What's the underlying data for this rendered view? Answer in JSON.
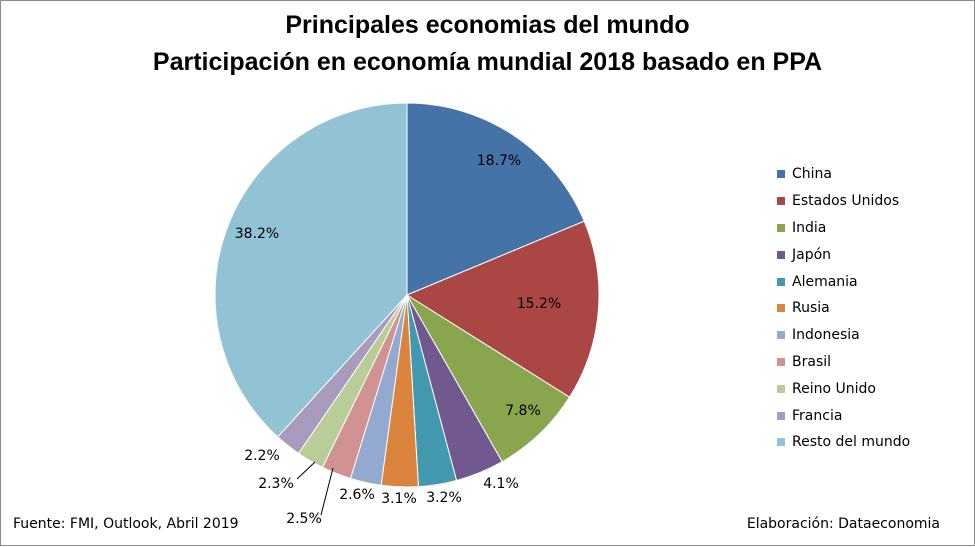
{
  "chart_data": {
    "type": "pie",
    "title": "Principales economias del mundo",
    "subtitle": "Participación en economía mundial 2018 basado en PPA",
    "categories": [
      "China",
      "Estados Unidos",
      "India",
      "Japón",
      "Alemania",
      "Rusia",
      "Indonesia",
      "Brasil",
      "Reino Unido",
      "Francia",
      "Resto del mundo"
    ],
    "values": [
      18.7,
      15.2,
      7.8,
      4.1,
      3.2,
      3.1,
      2.6,
      2.5,
      2.3,
      2.2,
      38.2
    ],
    "data_labels": [
      "18.7%",
      "15.2%",
      "7.8%",
      "4.1%",
      "3.2%",
      "3.1%",
      "2.6%",
      "2.5%",
      "2.3%",
      "2.2%",
      "38.2%"
    ],
    "colors": [
      "#4572a7",
      "#aa4643",
      "#89a54e",
      "#71588f",
      "#4198af",
      "#db843d",
      "#93a9cf",
      "#d19392",
      "#b9cd96",
      "#a99bbd",
      "#92c3d5"
    ],
    "legend_position": "right"
  },
  "footer": {
    "source": "Fuente: FMI, Outlook, Abril 2019",
    "credit": "Elaboración: Dataeconomia"
  }
}
